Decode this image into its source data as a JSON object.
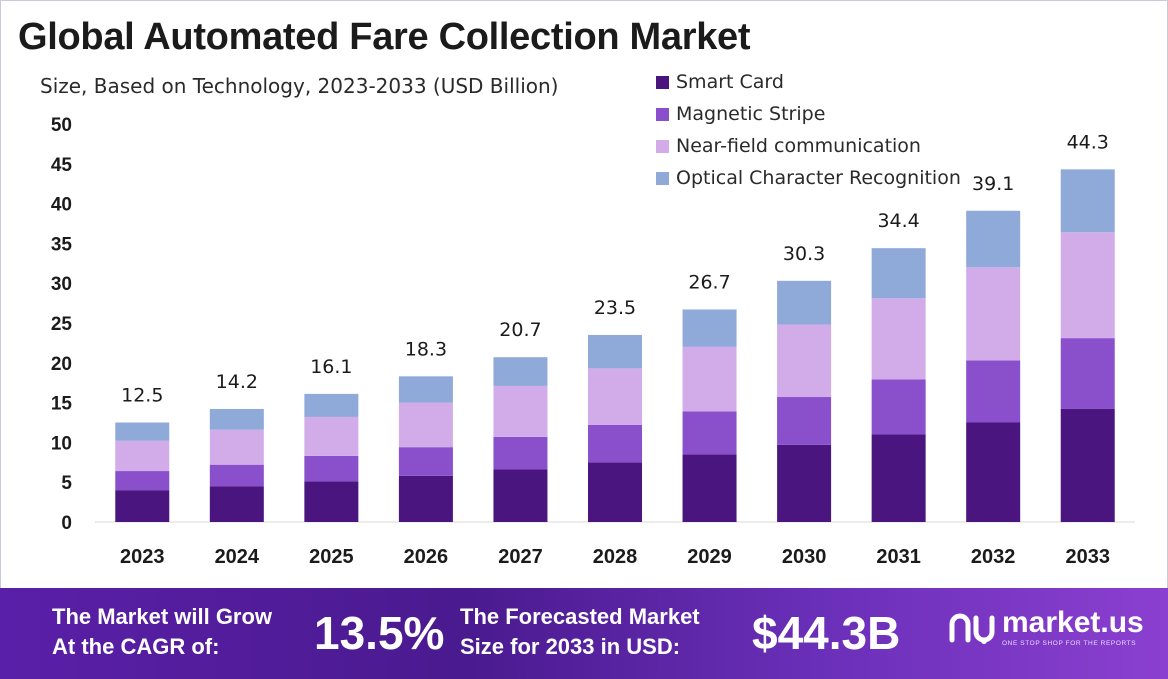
{
  "header": {
    "title": "Global Automated Fare Collection Market",
    "subtitle": "Size, Based on Technology, 2023-2033 (USD Billion)"
  },
  "chart_data": {
    "type": "bar",
    "stacked": true,
    "title": "Global Automated Fare Collection Market",
    "subtitle": "Size, Based on Technology, 2023-2033 (USD Billion)",
    "categories": [
      "2023",
      "2024",
      "2025",
      "2026",
      "2027",
      "2028",
      "2029",
      "2030",
      "2031",
      "2032",
      "2033"
    ],
    "series": [
      {
        "name": "Smart Card",
        "color": "#4b1580",
        "values": [
          4.0,
          4.5,
          5.1,
          5.8,
          6.6,
          7.5,
          8.5,
          9.7,
          11.0,
          12.5,
          14.2
        ]
      },
      {
        "name": "Magnetic Stripe",
        "color": "#8a4fcb",
        "values": [
          2.4,
          2.7,
          3.2,
          3.6,
          4.1,
          4.7,
          5.4,
          6.0,
          6.9,
          7.8,
          8.9
        ]
      },
      {
        "name": "Near-field communication",
        "color": "#d1ace8",
        "values": [
          3.8,
          4.4,
          4.9,
          5.6,
          6.4,
          7.1,
          8.1,
          9.1,
          10.2,
          11.7,
          13.3
        ]
      },
      {
        "name": "Optical Character Recognition",
        "color": "#8fa9d9",
        "values": [
          2.3,
          2.6,
          2.9,
          3.3,
          3.6,
          4.2,
          4.7,
          5.5,
          6.3,
          7.1,
          7.9
        ]
      }
    ],
    "totals": [
      "12.5",
      "14.2",
      "16.1",
      "18.3",
      "20.7",
      "23.5",
      "26.7",
      "30.3",
      "34.4",
      "39.1",
      "44.3"
    ],
    "y_ticks": [
      "0",
      "5",
      "10",
      "15",
      "20",
      "25",
      "30",
      "35",
      "40",
      "45",
      "50"
    ],
    "ylim": [
      0,
      50
    ],
    "xlabel": "",
    "ylabel": "",
    "grid": false,
    "legend_position": "top-right"
  },
  "footer": {
    "cagr_label_line1": "The Market will Grow",
    "cagr_label_line2": "At the CAGR of:",
    "cagr_value": "13.5%",
    "forecast_label_line1": "The Forecasted Market",
    "forecast_label_line2": "Size for 2033 in USD:",
    "forecast_value": "$44.3B",
    "brand_name": "market.us",
    "brand_tagline": "ONE STOP SHOP FOR THE REPORTS",
    "brand_color": "#ffffff"
  }
}
